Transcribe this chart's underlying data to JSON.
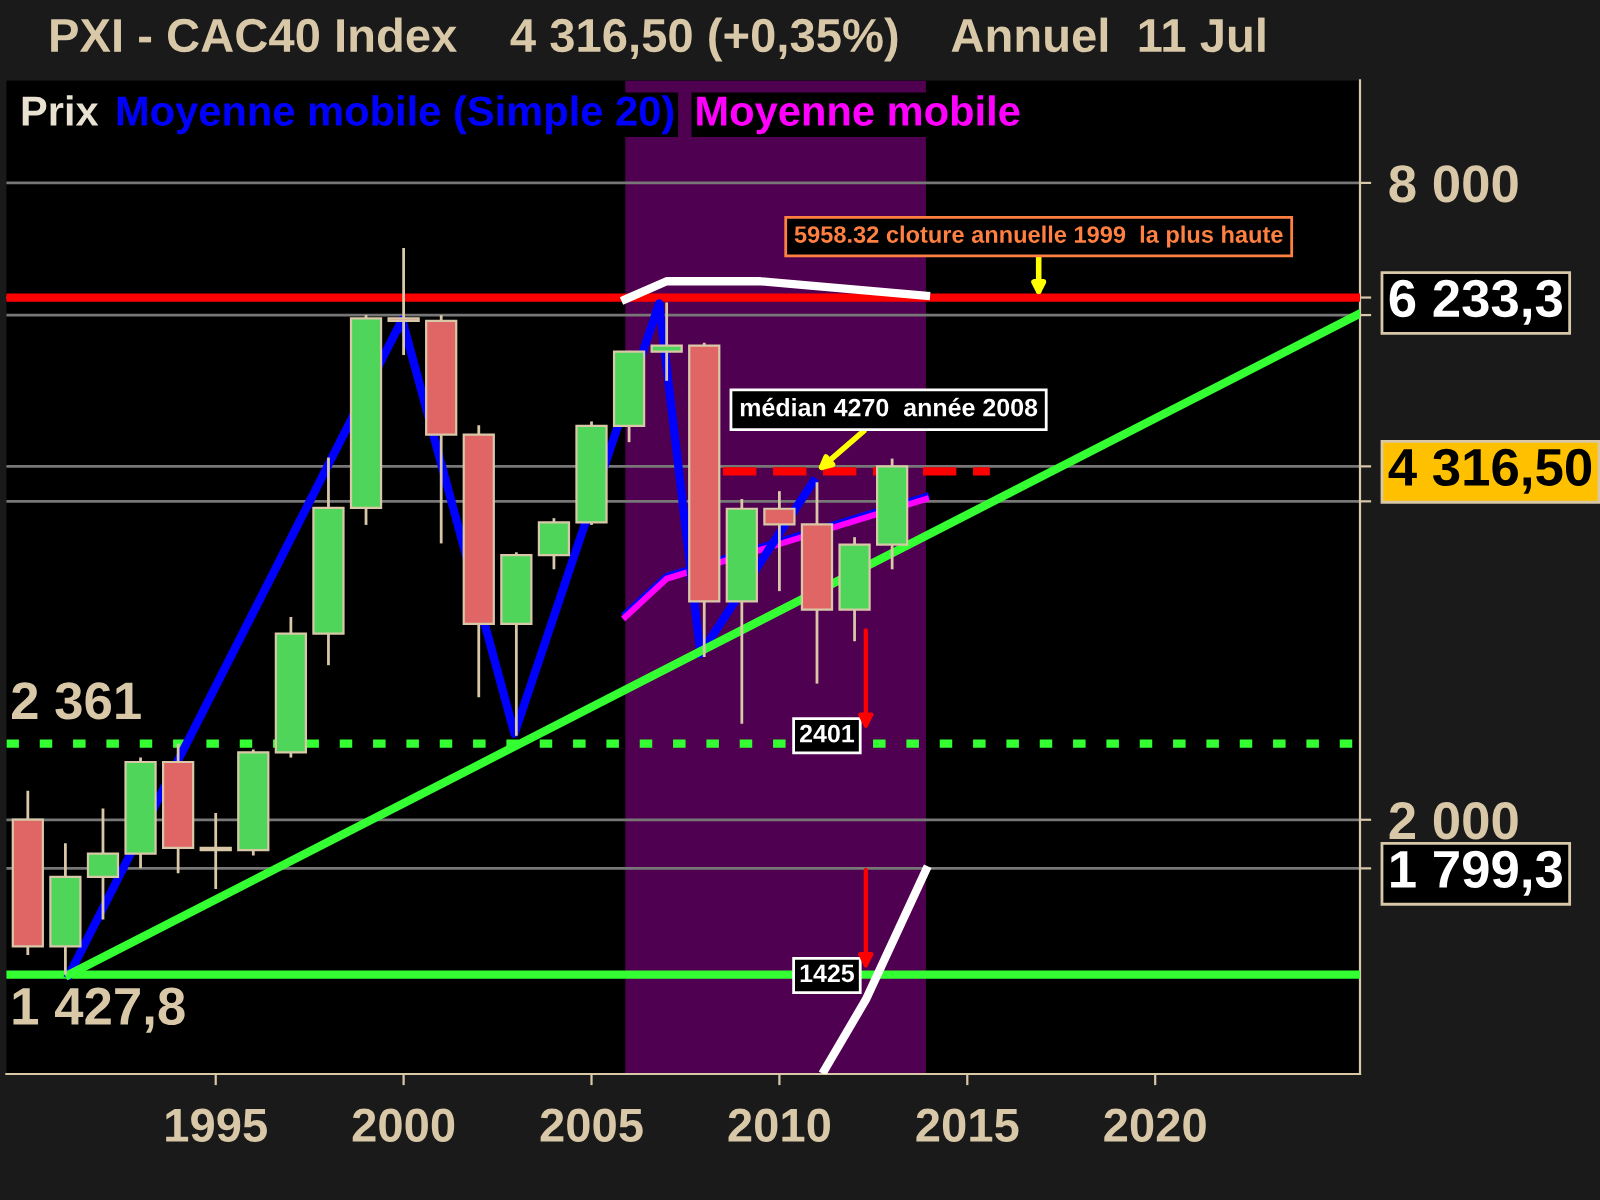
{
  "chart_data": {
    "type": "candlestick",
    "title": "PXI - CAC40 Index    4 316,50 (+0,35%)    Annuel  11 Jul",
    "series": [
      {
        "name": "Prix",
        "color": "#e8e0d0",
        "colors": [
          "#e06666",
          "#4fd65a",
          "#4fd65a",
          "#4fd65a",
          "#e06666",
          "#e06666",
          "#4fd65a",
          "#4fd65a",
          "#4fd65a",
          "#4fd65a",
          "#e06666",
          "#e06666",
          "#e06666",
          "#4fd65a",
          "#4fd65a",
          "#4fd65a",
          "#4fd65a",
          "#4fd65a",
          "#e06666",
          "#4fd65a",
          "#e06666",
          "#e06666",
          "#4fd65a",
          "#4fd65a"
        ],
        "x": [
          1990,
          1991,
          1992,
          1993,
          1994,
          1995,
          1996,
          1997,
          1998,
          1999,
          2000,
          2001,
          2002,
          2003,
          2004,
          2005,
          2006,
          2007,
          2008,
          2009,
          2010,
          2011,
          2012,
          2013
        ],
        "ohlc": [
          [
            2001,
            2130,
            1490,
            1518
          ],
          [
            1518,
            1900,
            1428,
            1766
          ],
          [
            1766,
            2050,
            1610,
            1858
          ],
          [
            1858,
            2290,
            1800,
            2268
          ],
          [
            2268,
            2360,
            1780,
            1881
          ],
          [
            1881,
            2030,
            1720,
            1872
          ],
          [
            1872,
            2330,
            1850,
            2316
          ],
          [
            2316,
            3110,
            2290,
            2999
          ],
          [
            2999,
            4400,
            2800,
            3943
          ],
          [
            3943,
            6000,
            3800,
            5958
          ],
          [
            5958,
            6944,
            5500,
            5926
          ],
          [
            5926,
            5999,
            3650,
            4625
          ],
          [
            4625,
            4720,
            2612,
            3064
          ],
          [
            3064,
            3580,
            2401,
            3558
          ],
          [
            3558,
            3856,
            3450,
            3821
          ],
          [
            3821,
            4760,
            3800,
            4715
          ],
          [
            4715,
            5550,
            4550,
            5542
          ],
          [
            5542,
            6168,
            5200,
            5614
          ],
          [
            5614,
            5650,
            2850,
            3218
          ],
          [
            3218,
            4020,
            2465,
            3936
          ],
          [
            3936,
            4090,
            3290,
            3805
          ],
          [
            3805,
            4170,
            2690,
            3160
          ],
          [
            3160,
            3700,
            2950,
            3641
          ],
          [
            3641,
            4390,
            3450,
            4317
          ]
        ]
      },
      {
        "name": "Moyenne mobile (Simple 20)",
        "type": "line",
        "color": "#0000ff",
        "x": [
          2005.9,
          2007.0,
          2013.9
        ],
        "values": [
          3131,
          3401,
          4046
        ]
      },
      {
        "name": "Moyenne mobile",
        "type": "line",
        "color": "#ff00ff",
        "x": [
          2005.9,
          2007.0,
          2013.9
        ],
        "values": [
          3110,
          3380,
          4020
        ]
      },
      {
        "type": "line",
        "color": "#0000ff",
        "x": [
          1991.1,
          1999.96,
          2002.95,
          2006.8,
          2007.9,
          2010.9
        ],
        "values": [
          1428,
          5941,
          2413,
          6153,
          2870,
          4175
        ]
      },
      {
        "type": "line",
        "color": "#33ff33",
        "x": [
          1991.1,
          2025.45
        ],
        "values": [
          1428,
          6020
        ]
      },
      {
        "type": "line",
        "color": "#ffffff",
        "x": [
          2005.9,
          2007.0,
          2009.5,
          2013.9
        ],
        "values": [
          6209,
          6458,
          6458,
          6257
        ]
      },
      {
        "type": "line",
        "color": "#ffffff",
        "x": [
          2011.2,
          2012.3,
          2013.9
        ],
        "values": [
          1160,
          1352,
          1793
        ]
      },
      {
        "type": "line",
        "color": "#ff0000",
        "line_style": "dashed",
        "x": [
          2008.5,
          2015.6
        ],
        "values": [
          4270,
          4270
        ]
      }
    ],
    "log": true,
    "xlim": [
      1989.43,
      2025.45
    ],
    "ylim": [
      1150,
      10000
    ],
    "xticks": [
      1995,
      2000,
      2005,
      2010,
      2015,
      2020
    ],
    "yticks": [
      {
        "value": 1799.3,
        "label": "1 799,3"
      },
      {
        "value": 2000,
        "label": "2 000"
      },
      {
        "value": 4000,
        "label": null
      },
      {
        "value": 4316.5,
        "label": "4 316,50"
      },
      {
        "value": 6000,
        "label": null
      },
      {
        "value": 6233.3,
        "label": "6 233,3"
      },
      {
        "value": 8000,
        "label": "8 000"
      }
    ],
    "grid": "y",
    "legend": "top left",
    "ref_lines": [
      {
        "axis": "y",
        "value": 6233.3,
        "color": "#ff0000",
        "line_style": "solid"
      },
      {
        "axis": "y",
        "value": 2361,
        "label": "2 361",
        "color": "#33ff33",
        "line_style": "dotted"
      },
      {
        "axis": "y",
        "value": 1427.8,
        "label": "1 427,8",
        "color": "#33ff33",
        "line_style": "solid"
      }
    ],
    "bands": [
      {
        "axis": "x",
        "from": 2005.9,
        "to": 2013.9,
        "color": "#500050"
      }
    ],
    "annotations": [
      {
        "text": "5958.32 cloture annuelle 1999  la plus haute",
        "x": 2016.9,
        "y": 6233.3
      },
      {
        "text": "médian 4270  année 2008",
        "x": 2011,
        "y": 4270
      },
      {
        "text": "2401",
        "x": 2012.3,
        "y": 2401
      },
      {
        "text": "1425",
        "x": 2012.3,
        "y": 1425
      }
    ]
  }
}
